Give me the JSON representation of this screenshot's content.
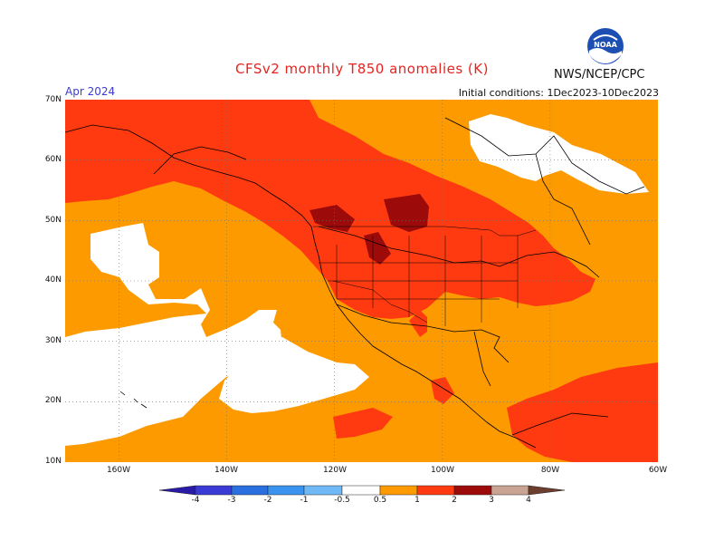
{
  "header": {
    "title": "CFSv2 monthly T850 anomalies (K)",
    "agency": "NWS/NCEP/CPC",
    "valid_month": "Apr 2024",
    "initial_conditions": "Initial conditions: 1Dec2023-10Dec2023",
    "logo_text": "NOAA"
  },
  "map": {
    "lat_labels": [
      "70N",
      "60N",
      "50N",
      "40N",
      "30N",
      "20N",
      "10N"
    ],
    "lon_labels": [
      "160W",
      "140W",
      "120W",
      "100W",
      "80W",
      "60W"
    ],
    "lat_range": [
      10,
      70
    ],
    "lon_range": [
      -170,
      -60
    ],
    "colors": {
      "neutral": "#ffffff",
      "warm_0_5_1": "#fc9a00",
      "warm_1_2": "#ff3a10",
      "warm_2_3": "#9c0a0a",
      "border": "#000000"
    }
  },
  "colorbar": {
    "labels": [
      "-4",
      "-3",
      "-2",
      "-1",
      "-0.5",
      "0.5",
      "1",
      "2",
      "3",
      "4"
    ],
    "colors": [
      "#2a1aa8",
      "#3a3ad6",
      "#2a6fe0",
      "#3b93f0",
      "#6fb9f6",
      "#ffffff",
      "#fc9a00",
      "#ff3a10",
      "#9c0a0a",
      "#c9a393",
      "#6b3e2e"
    ]
  }
}
